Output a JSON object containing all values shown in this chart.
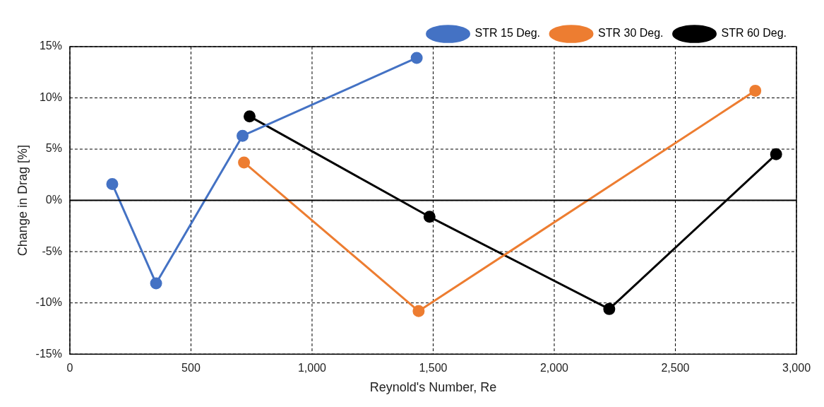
{
  "chart_data": {
    "type": "line",
    "xlabel": "Reynold's Number, Re",
    "ylabel": "Change in Drag [%]",
    "xlim": [
      0,
      3000
    ],
    "xticks": [
      {
        "value": 0,
        "label": "0"
      },
      {
        "value": 500,
        "label": "500"
      },
      {
        "value": 1000,
        "label": "1,000"
      },
      {
        "value": 1500,
        "label": "1,500"
      },
      {
        "value": 2000,
        "label": "2,000"
      },
      {
        "value": 2500,
        "label": "2,500"
      },
      {
        "value": 3000,
        "label": "3,000"
      }
    ],
    "ylim": [
      -15,
      15
    ],
    "yticks": [
      {
        "value": -15,
        "label": "-15%"
      },
      {
        "value": -10,
        "label": "-10%"
      },
      {
        "value": -5,
        "label": "-5%"
      },
      {
        "value": 0,
        "label": "0%"
      },
      {
        "value": 5,
        "label": "5%"
      },
      {
        "value": 10,
        "label": "10%"
      },
      {
        "value": 15,
        "label": "15%"
      }
    ],
    "grid": true,
    "legend": "top right",
    "marker": "circle",
    "line_style": "solid",
    "ref_lines": [
      {
        "axis": "y",
        "value": 0,
        "color": "#000000",
        "line_style": "solid"
      }
    ],
    "series": [
      {
        "name": "STR 15 Deg.",
        "color": "#4472c4",
        "x": [
          175,
          356,
          713,
          1432
        ],
        "values": [
          1.6,
          -8.1,
          6.3,
          13.9
        ]
      },
      {
        "name": "STR 30 Deg.",
        "color": "#ed7d31",
        "x": [
          719,
          1440,
          2830
        ],
        "values": [
          3.7,
          -10.8,
          10.7
        ]
      },
      {
        "name": "STR 60 Deg.",
        "color": "#000000",
        "x": [
          742,
          1485,
          2227,
          2916
        ],
        "values": [
          8.2,
          -1.6,
          -10.6,
          4.5
        ]
      }
    ]
  }
}
